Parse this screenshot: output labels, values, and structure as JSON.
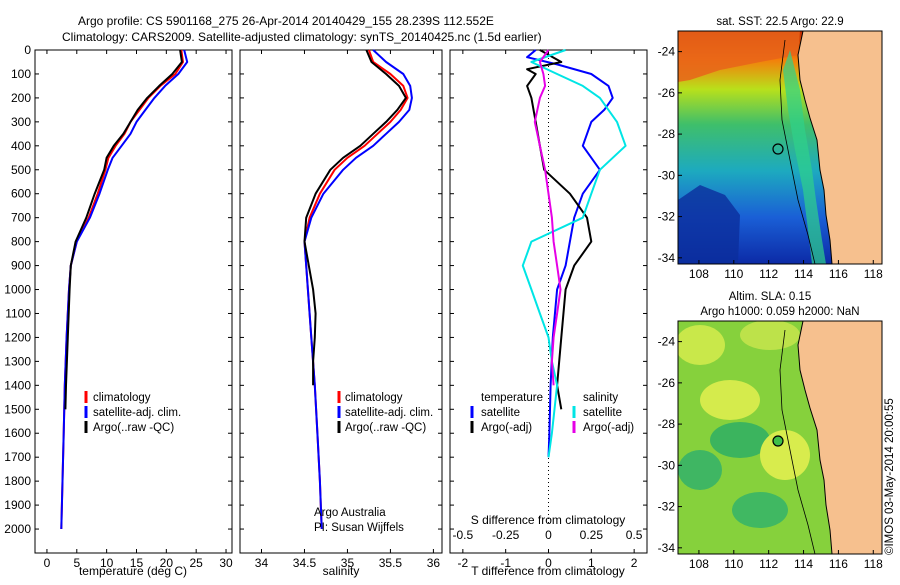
{
  "header": {
    "line1": "Argo profile: CS 5901168_275 26-Apr-2014 20140429_155 28.239S 112.552E",
    "line2": "Climatology: CARS2009. Satellite-adjusted climatology: synTS_20140425.nc (1.5d earlier)"
  },
  "colors": {
    "climatology": "#ff0000",
    "satellite": "#0000ff",
    "argo": "#000000",
    "satellite_salinity": "#00e5e5",
    "argo_salinity_adj": "#e600e6",
    "land": "#f6c08e"
  },
  "chart_data": [
    {
      "type": "line",
      "panel": "temperature",
      "xlabel": "temperature (deg C)",
      "ylabel": "",
      "xlim": [
        -2,
        31
      ],
      "ylim": [
        2100,
        0
      ],
      "xticks": [
        0,
        5,
        10,
        15,
        20,
        25,
        30
      ],
      "yticks": [
        0,
        100,
        200,
        300,
        400,
        500,
        600,
        700,
        800,
        900,
        1000,
        1100,
        1200,
        1300,
        1400,
        1500,
        1600,
        1700,
        1800,
        1900,
        2000
      ],
      "legend": [
        "climatology",
        "satellite-adj. clim.",
        "Argo(..raw -QC)"
      ],
      "series": [
        {
          "name": "climatology",
          "depth": [
            0,
            50,
            100,
            150,
            200,
            250,
            300,
            350,
            400,
            450,
            500,
            600,
            700,
            800,
            900,
            1000,
            1200,
            1400,
            1600,
            1800,
            2000
          ],
          "values": [
            22.5,
            22.8,
            21.5,
            19,
            17,
            15.5,
            14,
            13,
            11.5,
            10.3,
            9.8,
            8.5,
            7,
            5,
            4,
            3.7,
            3.3,
            3,
            2.8,
            2.6,
            2.4
          ]
        },
        {
          "name": "satellite-adj. clim.",
          "depth": [
            0,
            50,
            100,
            150,
            200,
            250,
            300,
            350,
            400,
            450,
            500,
            600,
            700,
            800,
            900,
            1000,
            1200,
            1400,
            1600,
            1800,
            2000
          ],
          "values": [
            23,
            23.5,
            22,
            19.8,
            18,
            16.5,
            15,
            14,
            12.5,
            11,
            10.2,
            8.8,
            7.2,
            5,
            4,
            3.7,
            3.3,
            3,
            2.8,
            2.6,
            2.4
          ]
        },
        {
          "name": "Argo(..raw -QC)",
          "depth": [
            0,
            50,
            100,
            150,
            200,
            250,
            300,
            350,
            400,
            450,
            500,
            600,
            700,
            800,
            900,
            1000,
            1200,
            1400,
            1500
          ],
          "values": [
            22.3,
            22.6,
            21,
            18.8,
            16.8,
            15.2,
            14,
            12.8,
            11.2,
            10,
            9.6,
            8,
            6.6,
            4.8,
            4,
            3.8,
            3.5,
            3.2,
            3.1
          ]
        }
      ]
    },
    {
      "type": "line",
      "panel": "salinity",
      "xlabel": "salinity",
      "ylabel": "",
      "xlim": [
        33.75,
        36.1
      ],
      "ylim": [
        2100,
        0
      ],
      "xticks": [
        34,
        34.5,
        35,
        35.5,
        36
      ],
      "legend": [
        "climatology",
        "satellite-adj. clim.",
        "Argo(..raw -QC)"
      ],
      "annotation": [
        "Argo Australia",
        "PI: Susan Wijffels"
      ],
      "series": [
        {
          "name": "climatology",
          "depth": [
            0,
            50,
            100,
            150,
            200,
            250,
            300,
            350,
            400,
            450,
            500,
            600,
            700,
            800,
            900,
            1000,
            1200,
            1400,
            1600,
            1800,
            2000
          ],
          "values": [
            35.25,
            35.3,
            35.5,
            35.65,
            35.7,
            35.62,
            35.5,
            35.35,
            35.2,
            35.0,
            34.85,
            34.68,
            34.56,
            34.5,
            34.52,
            34.54,
            34.58,
            34.62,
            34.65,
            34.68,
            34.7
          ]
        },
        {
          "name": "satellite-adj. clim.",
          "depth": [
            0,
            50,
            100,
            150,
            200,
            250,
            300,
            350,
            400,
            450,
            500,
            600,
            700,
            800,
            900,
            1000,
            1200,
            1400,
            1600,
            1800,
            2000
          ],
          "values": [
            35.3,
            35.45,
            35.65,
            35.73,
            35.75,
            35.72,
            35.6,
            35.45,
            35.3,
            35.1,
            34.95,
            34.72,
            34.58,
            34.5,
            34.52,
            34.54,
            34.58,
            34.62,
            34.65,
            34.68,
            34.7
          ]
        },
        {
          "name": "Argo(..raw -QC)",
          "depth": [
            0,
            50,
            100,
            150,
            200,
            250,
            300,
            350,
            400,
            450,
            500,
            600,
            700,
            800,
            900,
            1000,
            1100,
            1200,
            1300,
            1400
          ],
          "values": [
            35.22,
            35.28,
            35.45,
            35.6,
            35.68,
            35.58,
            35.45,
            35.3,
            35.15,
            34.95,
            34.8,
            34.63,
            34.52,
            34.5,
            34.55,
            34.6,
            34.63,
            34.62,
            34.6,
            34.6
          ]
        }
      ]
    },
    {
      "type": "line",
      "panel": "difference",
      "xlabel": "T difference from climatology",
      "xlabel2": "S difference from climatology",
      "xlim": [
        -2.3,
        2.3
      ],
      "ylim": [
        2100,
        0
      ],
      "xticks": [
        -2,
        -1,
        0,
        1,
        2
      ],
      "xticks_top": [
        "-0.5",
        "-0.25",
        "0",
        "0.25",
        "0.5"
      ],
      "legend_headers": [
        "temperature",
        "salinity"
      ],
      "legend_temperature": [
        "satellite",
        "Argo(-adj)"
      ],
      "legend_salinity": [
        "satellite",
        "Argo(-adj)"
      ],
      "series": [
        {
          "name": "T satellite",
          "depth": [
            0,
            30,
            60,
            100,
            150,
            200,
            250,
            300,
            400,
            500,
            600,
            700,
            800,
            900,
            1000,
            1200,
            1400,
            1600,
            1700
          ],
          "values": [
            -0.3,
            -0.5,
            0.2,
            1.0,
            1.4,
            1.5,
            1.3,
            1.0,
            0.8,
            1.2,
            0.8,
            0.6,
            0.5,
            0.4,
            0.2,
            0.1,
            0.05,
            0.02,
            0
          ]
        },
        {
          "name": "T Argo(-adj)",
          "depth": [
            0,
            50,
            80,
            100,
            150,
            200,
            300,
            400,
            500,
            600,
            700,
            800,
            900,
            1000,
            1200,
            1400,
            1500
          ],
          "values": [
            -0.2,
            0.3,
            -0.5,
            -0.3,
            -0.5,
            -0.4,
            -0.3,
            -0.2,
            -0.1,
            0.5,
            0.9,
            1.0,
            0.6,
            0.4,
            0.3,
            0.2,
            0.3
          ]
        },
        {
          "name": "S satellite",
          "depth": [
            0,
            50,
            100,
            150,
            200,
            300,
            400,
            500,
            600,
            700,
            800,
            900,
            1000,
            1100,
            1200,
            1300,
            1400,
            1600,
            1700
          ],
          "values": [
            0.1,
            -0.1,
            0.05,
            0.2,
            0.3,
            0.4,
            0.45,
            0.3,
            0.25,
            0.2,
            -0.1,
            -0.15,
            -0.1,
            -0.05,
            0,
            0.02,
            0.05,
            0.02,
            0
          ]
        },
        {
          "name": "S Argo(-adj)",
          "depth": [
            0,
            50,
            100,
            150,
            200,
            300,
            400,
            500,
            600,
            700,
            800,
            900,
            1000,
            1100,
            1200,
            1300,
            1400
          ],
          "values": [
            0,
            -0.05,
            -0.03,
            -0.02,
            -0.05,
            -0.08,
            -0.05,
            -0.02,
            0,
            0.02,
            0.03,
            0.05,
            0.07,
            0.05,
            0.03,
            0.02,
            0.03
          ]
        }
      ]
    },
    {
      "type": "heatmap",
      "panel": "sst-map",
      "title": "sat. SST: 22.5 Argo: 22.9",
      "xticks": [
        108,
        110,
        112,
        114,
        116,
        118
      ],
      "yticks": [
        -24,
        -26,
        -28,
        -30,
        -32,
        -34
      ],
      "argo_position": {
        "lon": 112.552,
        "lat": -28.239
      }
    },
    {
      "type": "heatmap",
      "panel": "sla-map",
      "title_line1": "Altim. SLA: 0.15",
      "title_line2": "Argo h1000: 0.059 h2000: NaN",
      "xticks": [
        108,
        110,
        112,
        114,
        116,
        118
      ],
      "yticks": [
        -24,
        -26,
        -28,
        -30,
        -32,
        -34
      ],
      "argo_position": {
        "lon": 112.552,
        "lat": -28.239
      }
    }
  ],
  "footer": {
    "stamp": "©IMOS 03-May-2014 20:00:55"
  }
}
